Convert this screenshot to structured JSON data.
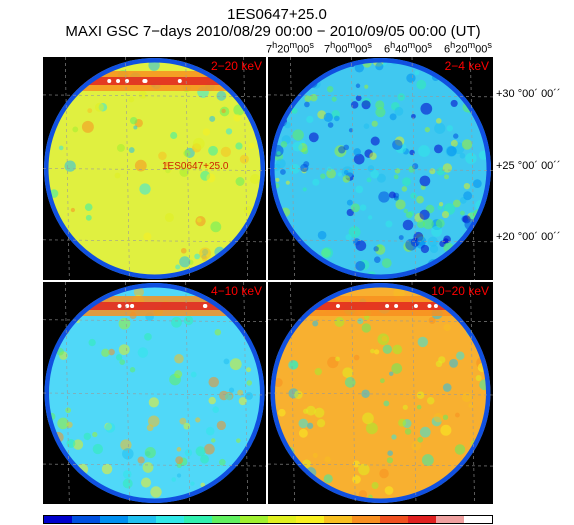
{
  "header": {
    "title": "1ES0647+25.0",
    "subtitle": "MAXI GSC 7−days 2010/08/29 00:00 − 2010/09/05 00:00 (UT)"
  },
  "ra_axis": {
    "labels": [
      "7h20m00s",
      "7h00m00s",
      "6h40m00s",
      "6h20m00s"
    ]
  },
  "dec_axis": {
    "labels": [
      "+30 °00´ 00´´",
      "+25 °00´ 00´´",
      "+20 °00´ 00´´"
    ]
  },
  "panels": [
    {
      "band": "2−20 keV",
      "base": "#e0f040",
      "hot_band": true,
      "noise": 0.25
    },
    {
      "band": "2−4 keV",
      "base": "#40c8f0",
      "hot_band": false,
      "noise": 0.9
    },
    {
      "band": "4−10 keV",
      "base": "#50d8f8",
      "hot_band": true,
      "noise": 0.35
    },
    {
      "band": "10−20 keV",
      "base": "#f8b030",
      "hot_band": true,
      "noise": 0.3
    }
  ],
  "source_label": "1ES0647+25.0",
  "colorbar": [
    "#0000cc",
    "#0050e0",
    "#0090f0",
    "#20c0f0",
    "#30e8e8",
    "#30f0b0",
    "#60f060",
    "#a0f030",
    "#e0f020",
    "#f8f020",
    "#f8c020",
    "#f89020",
    "#f05020",
    "#e02020",
    "#f0a0a0",
    "#ffffff"
  ]
}
